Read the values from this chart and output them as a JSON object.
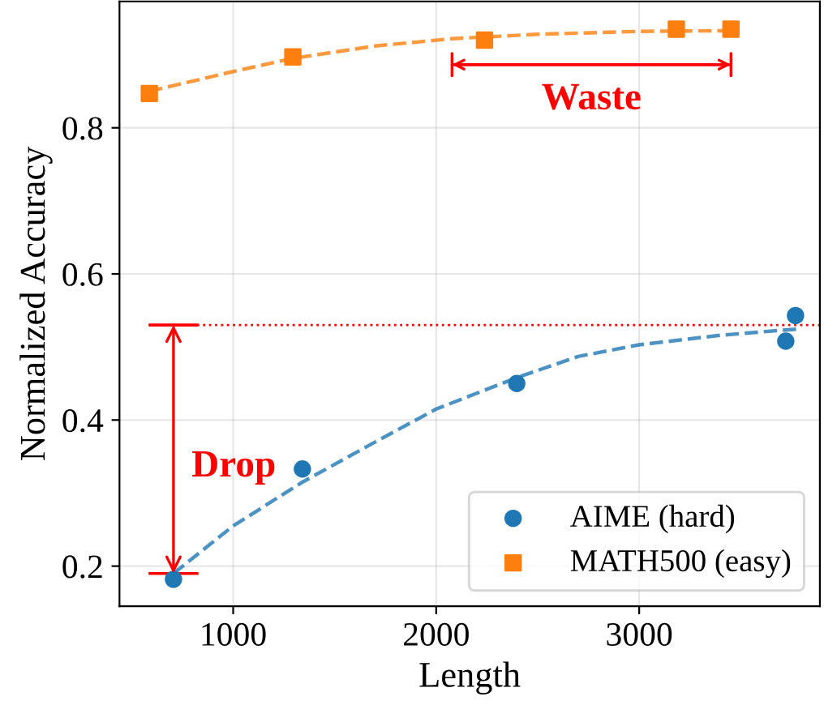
{
  "chart_data": {
    "type": "scatter",
    "xlabel": "Length",
    "ylabel": "Normalized Accuracy",
    "xlim": [
      440,
      3890
    ],
    "ylim": [
      0.145,
      0.973
    ],
    "xticks": [
      1000,
      2000,
      3000
    ],
    "yticks": [
      0.2,
      0.4,
      0.6,
      0.8
    ],
    "grid": true,
    "legend": "bottom right",
    "series": [
      {
        "name": "AIME (hard)",
        "color": "#1f77b4",
        "marker": "circle",
        "x": [
          706,
          1341,
          2397,
          3722,
          3770
        ],
        "values": [
          0.182,
          0.333,
          0.45,
          0.508,
          0.543
        ]
      },
      {
        "name": "MATH500 (easy)",
        "color": "#ff7f0e",
        "marker": "square",
        "x": [
          587,
          1294,
          2238,
          3183,
          3452
        ],
        "values": [
          0.847,
          0.897,
          0.92,
          0.935,
          0.935
        ]
      },
      {
        "type": "line",
        "color": "#1f77b4",
        "line_style": "dashed",
        "x": [
          706,
          1000,
          1341,
          1700,
          2000,
          2397,
          2700,
          3000,
          3400,
          3800
        ],
        "values": [
          0.19,
          0.255,
          0.315,
          0.37,
          0.415,
          0.458,
          0.487,
          0.503,
          0.516,
          0.525
        ]
      },
      {
        "type": "line",
        "color": "#ff7f0e",
        "line_style": "dashed",
        "x": [
          587,
          1000,
          1294,
          1700,
          2078,
          2500,
          3000,
          3452
        ],
        "values": [
          0.85,
          0.877,
          0.895,
          0.912,
          0.922,
          0.928,
          0.932,
          0.933
        ]
      }
    ],
    "ref_lines": [
      {
        "axis": "y",
        "value": 0.53,
        "color": "#ff0000",
        "line_style": "dotted"
      }
    ],
    "annotations": [
      "Drop",
      "Waste"
    ]
  }
}
